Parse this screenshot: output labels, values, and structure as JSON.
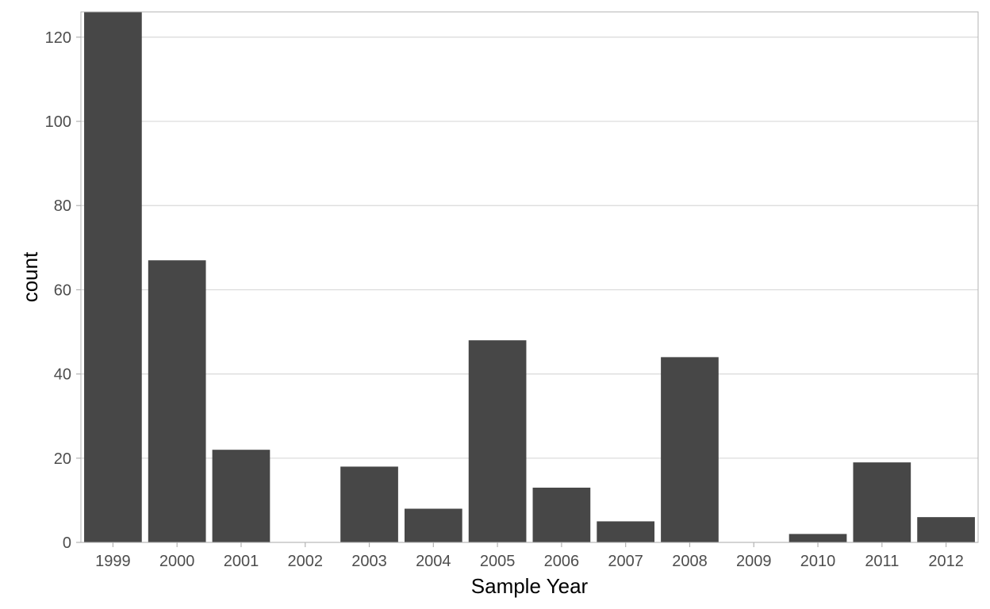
{
  "chart_data": {
    "type": "bar",
    "title": "",
    "xlabel": "Sample Year",
    "ylabel": "count",
    "categories": [
      "1999",
      "2000",
      "2001",
      "2002",
      "2003",
      "2004",
      "2005",
      "2006",
      "2007",
      "2008",
      "2009",
      "2010",
      "2011",
      "2012"
    ],
    "values": [
      126,
      67,
      22,
      0,
      18,
      8,
      48,
      13,
      5,
      44,
      0,
      2,
      19,
      6
    ],
    "ylim": [
      0,
      126
    ],
    "yticks": [
      0,
      20,
      40,
      60,
      80,
      100,
      120
    ],
    "grid": "horizontal major gridlines",
    "legend": "none",
    "colors": {
      "bar": "#474747",
      "grid": "#d9d9d9",
      "panel_border": "#b3b3b3",
      "tick_text": "#4d4d4d",
      "axis_title": "#000000"
    }
  }
}
